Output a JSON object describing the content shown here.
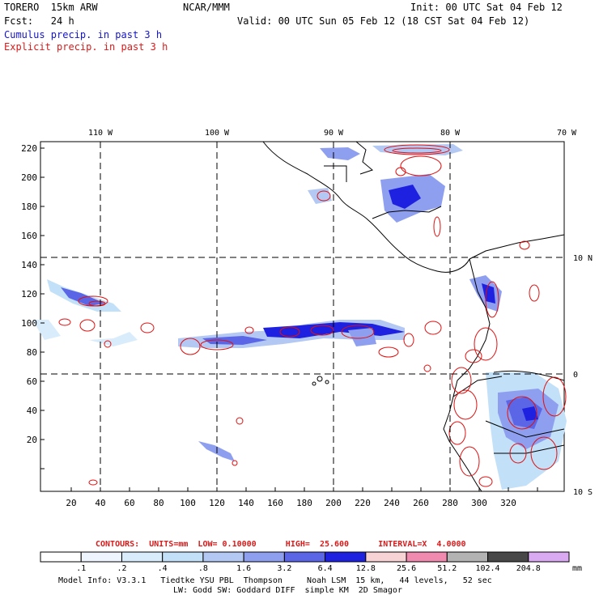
{
  "header": {
    "model_label": "TORERO  15km ARW",
    "org": "NCAR/MMM",
    "init": "Init: 00 UTC Sat 04 Feb 12",
    "fcst": "Fcst:   24 h",
    "valid": "Valid: 00 UTC Sun 05 Feb 12 (18 CST Sat 04 Feb 12)",
    "line_cumulus": "Cumulus precip. in past 3 h",
    "line_explicit": "Explicit precip. in past 3 h"
  },
  "map": {
    "lon_labels": [
      "110 W",
      "100 W",
      "90 W",
      "80 W",
      "70 W"
    ],
    "lat_labels": [
      "10 N",
      "0",
      "10 S"
    ],
    "x_ticks": [
      "20",
      "40",
      "60",
      "80",
      "100",
      "120",
      "140",
      "160",
      "180",
      "200",
      "220",
      "240",
      "260",
      "280",
      "300",
      "320"
    ],
    "y_ticks": [
      "220",
      "200",
      "180",
      "160",
      "140",
      "120",
      "100",
      "80",
      "60",
      "40",
      "20"
    ]
  },
  "contour_info": "CONTOURS:  UNITS=mm  LOW= 0.10000      HIGH=  25.600      INTERVAL=X  4.0000",
  "colorbar": {
    "units": "mm",
    "labels": [
      ".1",
      ".2",
      ".4",
      ".8",
      "1.6",
      "3.2",
      "6.4",
      "12.8",
      "25.6",
      "51.2",
      "102.4",
      "204.8"
    ],
    "colors": [
      "#ffffff",
      "#eef5ff",
      "#d9ecfb",
      "#c2e0f7",
      "#b3c8f3",
      "#8f9ff0",
      "#5b66e6",
      "#1e22e0",
      "#f8d3d6",
      "#f08aaf",
      "#b3b3b3",
      "#484848",
      "#d9aaf2"
    ]
  },
  "footer": {
    "line1": "Model Info: V3.3.1   Tiedtke YSU PBL  Thompson     Noah LSM  15 km,   44 levels,   52 sec",
    "line2": "LW: Godd SW: Goddard DIFF  simple KM  2D Smagor"
  }
}
